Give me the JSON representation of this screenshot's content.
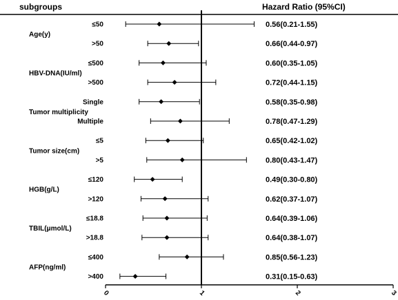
{
  "header": {
    "subgroups_label": "subgroups",
    "hr_label": "Hazard Ratio (95%CI)"
  },
  "chart_data": {
    "type": "forest",
    "x_axis": {
      "ticks": [
        "0",
        "1",
        "2",
        "3"
      ],
      "range": [
        0,
        3
      ],
      "reference_line": 1
    },
    "groups": [
      {
        "name": "Age(y)"
      },
      {
        "name": "HBV-DNA(IU/ml)"
      },
      {
        "name": "Tumor multiplicity"
      },
      {
        "name": "Tumor size(cm)"
      },
      {
        "name": "HGB(g/L)"
      },
      {
        "name": "TBIL(μmol/L)"
      },
      {
        "name": "AFP(ng/ml)"
      }
    ],
    "rows": [
      {
        "group": 0,
        "subgroup": "≤50",
        "hr": 0.56,
        "lo": 0.21,
        "hi": 1.55,
        "label": "0.56(0.21-1.55)"
      },
      {
        "group": 0,
        "subgroup": ">50",
        "hr": 0.66,
        "lo": 0.44,
        "hi": 0.97,
        "label": "0.66(0.44-0.97)"
      },
      {
        "group": 1,
        "subgroup": "≤500",
        "hr": 0.6,
        "lo": 0.35,
        "hi": 1.05,
        "label": "0.60(0.35-1.05)"
      },
      {
        "group": 1,
        "subgroup": ">500",
        "hr": 0.72,
        "lo": 0.44,
        "hi": 1.15,
        "label": "0.72(0.44-1.15)"
      },
      {
        "group": 2,
        "subgroup": "Single",
        "hr": 0.58,
        "lo": 0.35,
        "hi": 0.98,
        "label": "0.58(0.35-0.98)"
      },
      {
        "group": 2,
        "subgroup": "Multiple",
        "hr": 0.78,
        "lo": 0.47,
        "hi": 1.29,
        "label": "0.78(0.47-1.29)"
      },
      {
        "group": 3,
        "subgroup": "≤5",
        "hr": 0.65,
        "lo": 0.42,
        "hi": 1.02,
        "label": "0.65(0.42-1.02)"
      },
      {
        "group": 3,
        "subgroup": ">5",
        "hr": 0.8,
        "lo": 0.43,
        "hi": 1.47,
        "label": "0.80(0.43-1.47)"
      },
      {
        "group": 4,
        "subgroup": "≤120",
        "hr": 0.49,
        "lo": 0.3,
        "hi": 0.8,
        "label": "0.49(0.30-0.80)"
      },
      {
        "group": 4,
        "subgroup": ">120",
        "hr": 0.62,
        "lo": 0.37,
        "hi": 1.07,
        "label": "0.62(0.37-1.07)"
      },
      {
        "group": 5,
        "subgroup": "≤18.8",
        "hr": 0.64,
        "lo": 0.39,
        "hi": 1.06,
        "label": "0.64(0.39-1.06)"
      },
      {
        "group": 5,
        "subgroup": ">18.8",
        "hr": 0.64,
        "lo": 0.38,
        "hi": 1.07,
        "label": "0.64(0.38-1.07)"
      },
      {
        "group": 6,
        "subgroup": "≤400",
        "hr": 0.85,
        "lo": 0.56,
        "hi": 1.23,
        "label": "0.85(0.56-1.23)"
      },
      {
        "group": 6,
        "subgroup": ">400",
        "hr": 0.31,
        "lo": 0.15,
        "hi": 0.63,
        "label": "0.31(0.15-0.63)"
      }
    ]
  }
}
